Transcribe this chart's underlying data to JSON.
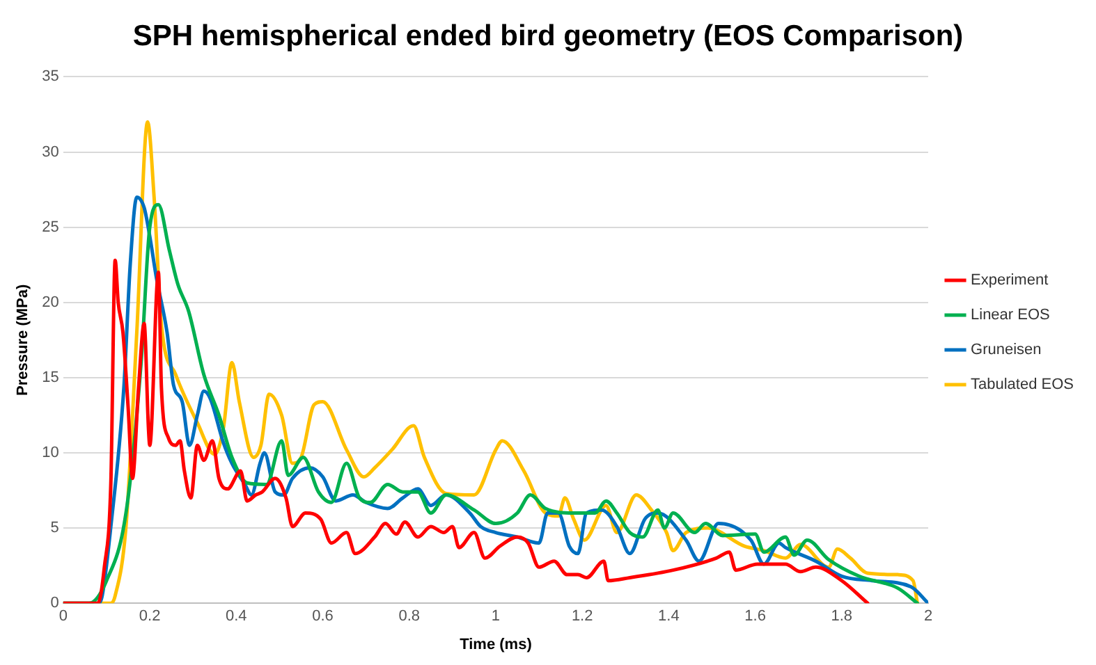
{
  "chart_data": {
    "type": "line",
    "title": "SPH hemispherical ended bird geometry (EOS Comparison)",
    "xlabel": "Time (ms)",
    "ylabel": "Pressure (MPa)",
    "xlim": [
      0,
      2
    ],
    "xticks": [
      0,
      0.2,
      0.4,
      0.6,
      0.8,
      1,
      1.2,
      1.4,
      1.6,
      1.8,
      2
    ],
    "ylim": [
      0,
      35
    ],
    "yticks": [
      0,
      5,
      10,
      15,
      20,
      25,
      30,
      35
    ],
    "grid": "y",
    "legend": "right",
    "marker": "none",
    "line_style": "solid",
    "series": [
      {
        "name": "Experiment",
        "color": "#ff0000",
        "x": [
          0,
          0.08,
          0.095,
          0.11,
          0.12,
          0.127,
          0.138,
          0.15,
          0.16,
          0.174,
          0.187,
          0.197,
          0.2,
          0.22,
          0.227,
          0.243,
          0.26,
          0.27,
          0.28,
          0.295,
          0.31,
          0.325,
          0.345,
          0.36,
          0.38,
          0.41,
          0.425,
          0.445,
          0.46,
          0.49,
          0.515,
          0.53,
          0.56,
          0.595,
          0.62,
          0.655,
          0.675,
          0.72,
          0.745,
          0.77,
          0.79,
          0.82,
          0.85,
          0.88,
          0.9,
          0.915,
          0.95,
          0.975,
          1.01,
          1.05,
          1.075,
          1.1,
          1.135,
          1.165,
          1.19,
          1.21,
          1.25,
          1.26,
          1.31,
          1.41,
          1.51,
          1.54,
          1.555,
          1.605,
          1.67,
          1.705,
          1.74,
          1.8,
          1.86
        ],
        "values": [
          0,
          0,
          2.4,
          8,
          22.8,
          20,
          18,
          13,
          8.3,
          14.3,
          18.6,
          11.6,
          10.5,
          22,
          14.3,
          11,
          10.5,
          10.8,
          8.8,
          7,
          10.5,
          9.5,
          10.8,
          8.3,
          7.6,
          8.8,
          6.8,
          7.2,
          7.4,
          8.3,
          7,
          5.1,
          6,
          5.6,
          4,
          4.7,
          3.3,
          4.4,
          5.3,
          4.6,
          5.4,
          4.4,
          5.1,
          4.7,
          5.1,
          3.7,
          4.7,
          3,
          3.8,
          4.4,
          4,
          2.4,
          2.8,
          1.9,
          1.9,
          1.7,
          2.8,
          1.5,
          1.7,
          2.2,
          3,
          3.4,
          2.2,
          2.6,
          2.6,
          2.1,
          2.4,
          1.5,
          0
        ]
      },
      {
        "name": "Linear EOS",
        "color": "#00b050",
        "x": [
          0,
          0.06,
          0.1,
          0.145,
          0.18,
          0.2,
          0.22,
          0.245,
          0.265,
          0.29,
          0.325,
          0.36,
          0.39,
          0.425,
          0.47,
          0.505,
          0.52,
          0.555,
          0.59,
          0.62,
          0.655,
          0.685,
          0.71,
          0.75,
          0.785,
          0.82,
          0.85,
          0.885,
          0.95,
          1,
          1.05,
          1.08,
          1.115,
          1.18,
          1.23,
          1.255,
          1.28,
          1.31,
          1.34,
          1.375,
          1.39,
          1.41,
          1.46,
          1.485,
          1.525,
          1.6,
          1.62,
          1.67,
          1.69,
          1.72,
          1.77,
          1.84,
          1.93,
          1.975
        ],
        "values": [
          0,
          0,
          1.5,
          6,
          16,
          25,
          26.5,
          23.5,
          21.2,
          19.4,
          15.2,
          12.5,
          9.7,
          8,
          7.9,
          10.8,
          8.5,
          9.7,
          7.4,
          6.7,
          9.3,
          7,
          6.7,
          7.9,
          7.4,
          7.4,
          6,
          7.2,
          6.2,
          5.3,
          6,
          7.2,
          6.3,
          6,
          6,
          6.8,
          6,
          4.7,
          4.4,
          6.2,
          5,
          6,
          4.7,
          5.3,
          4.5,
          4.6,
          3.4,
          4.4,
          3.2,
          4.2,
          2.9,
          1.8,
          1,
          0
        ]
      },
      {
        "name": "Gruneisen",
        "color": "#0070c0",
        "x": [
          0,
          0.08,
          0.09,
          0.11,
          0.14,
          0.155,
          0.17,
          0.187,
          0.2,
          0.215,
          0.24,
          0.255,
          0.275,
          0.292,
          0.31,
          0.325,
          0.34,
          0.37,
          0.39,
          0.42,
          0.435,
          0.455,
          0.465,
          0.49,
          0.51,
          0.53,
          0.57,
          0.6,
          0.63,
          0.67,
          0.7,
          0.75,
          0.785,
          0.82,
          0.85,
          0.885,
          0.94,
          0.965,
          1,
          1.05,
          1.1,
          1.12,
          1.145,
          1.17,
          1.19,
          1.21,
          1.245,
          1.28,
          1.31,
          1.345,
          1.375,
          1.44,
          1.47,
          1.515,
          1.59,
          1.62,
          1.655,
          1.67,
          1.74,
          1.8,
          1.87,
          1.96,
          2
        ],
        "values": [
          0,
          0,
          0.5,
          5.1,
          14.3,
          22.6,
          27,
          26.3,
          24.4,
          21.7,
          18,
          14.5,
          13.4,
          10.5,
          12.5,
          14.1,
          13.6,
          10.7,
          9.3,
          7.9,
          7.2,
          9.3,
          10,
          7.4,
          7.2,
          8.3,
          9,
          8.4,
          6.8,
          7.2,
          6.7,
          6.3,
          7,
          7.6,
          6.5,
          7.2,
          6,
          5.1,
          4.7,
          4.4,
          4,
          6,
          6,
          3.8,
          3.3,
          6,
          6.2,
          5.1,
          3.3,
          5.6,
          6,
          4.2,
          2.8,
          5.3,
          4.2,
          2.6,
          4,
          3.7,
          2.8,
          1.8,
          1.5,
          1.1,
          0
        ]
      },
      {
        "name": "Tabulated EOS",
        "color": "#ffc000",
        "x": [
          0,
          0.11,
          0.12,
          0.145,
          0.17,
          0.195,
          0.21,
          0.227,
          0.26,
          0.31,
          0.35,
          0.37,
          0.39,
          0.407,
          0.44,
          0.457,
          0.476,
          0.505,
          0.53,
          0.55,
          0.58,
          0.6,
          0.655,
          0.695,
          0.72,
          0.76,
          0.81,
          0.835,
          0.885,
          0.95,
          1,
          1.015,
          1.065,
          1.115,
          1.145,
          1.16,
          1.18,
          1.205,
          1.255,
          1.28,
          1.325,
          1.36,
          1.395,
          1.41,
          1.44,
          1.49,
          1.575,
          1.62,
          1.67,
          1.705,
          1.77,
          1.79,
          1.82,
          1.86,
          1.93,
          1.965,
          1.975
        ],
        "values": [
          0,
          0,
          0.5,
          5.1,
          18,
          32,
          27,
          18.5,
          15.2,
          12,
          9.9,
          11.6,
          16,
          13.4,
          9.7,
          10.5,
          13.9,
          12.5,
          9.3,
          9.7,
          13.2,
          13.4,
          10.2,
          8.4,
          9,
          10.2,
          11.8,
          9.7,
          7.3,
          7.2,
          10.2,
          10.8,
          8.8,
          6,
          5.8,
          7,
          5.6,
          4.2,
          6.5,
          4.7,
          7.2,
          6.2,
          4.7,
          3.5,
          4.7,
          5,
          3.8,
          3.5,
          3,
          3.9,
          2.4,
          3.6,
          3,
          2,
          1.9,
          1.5,
          0
        ]
      }
    ]
  }
}
